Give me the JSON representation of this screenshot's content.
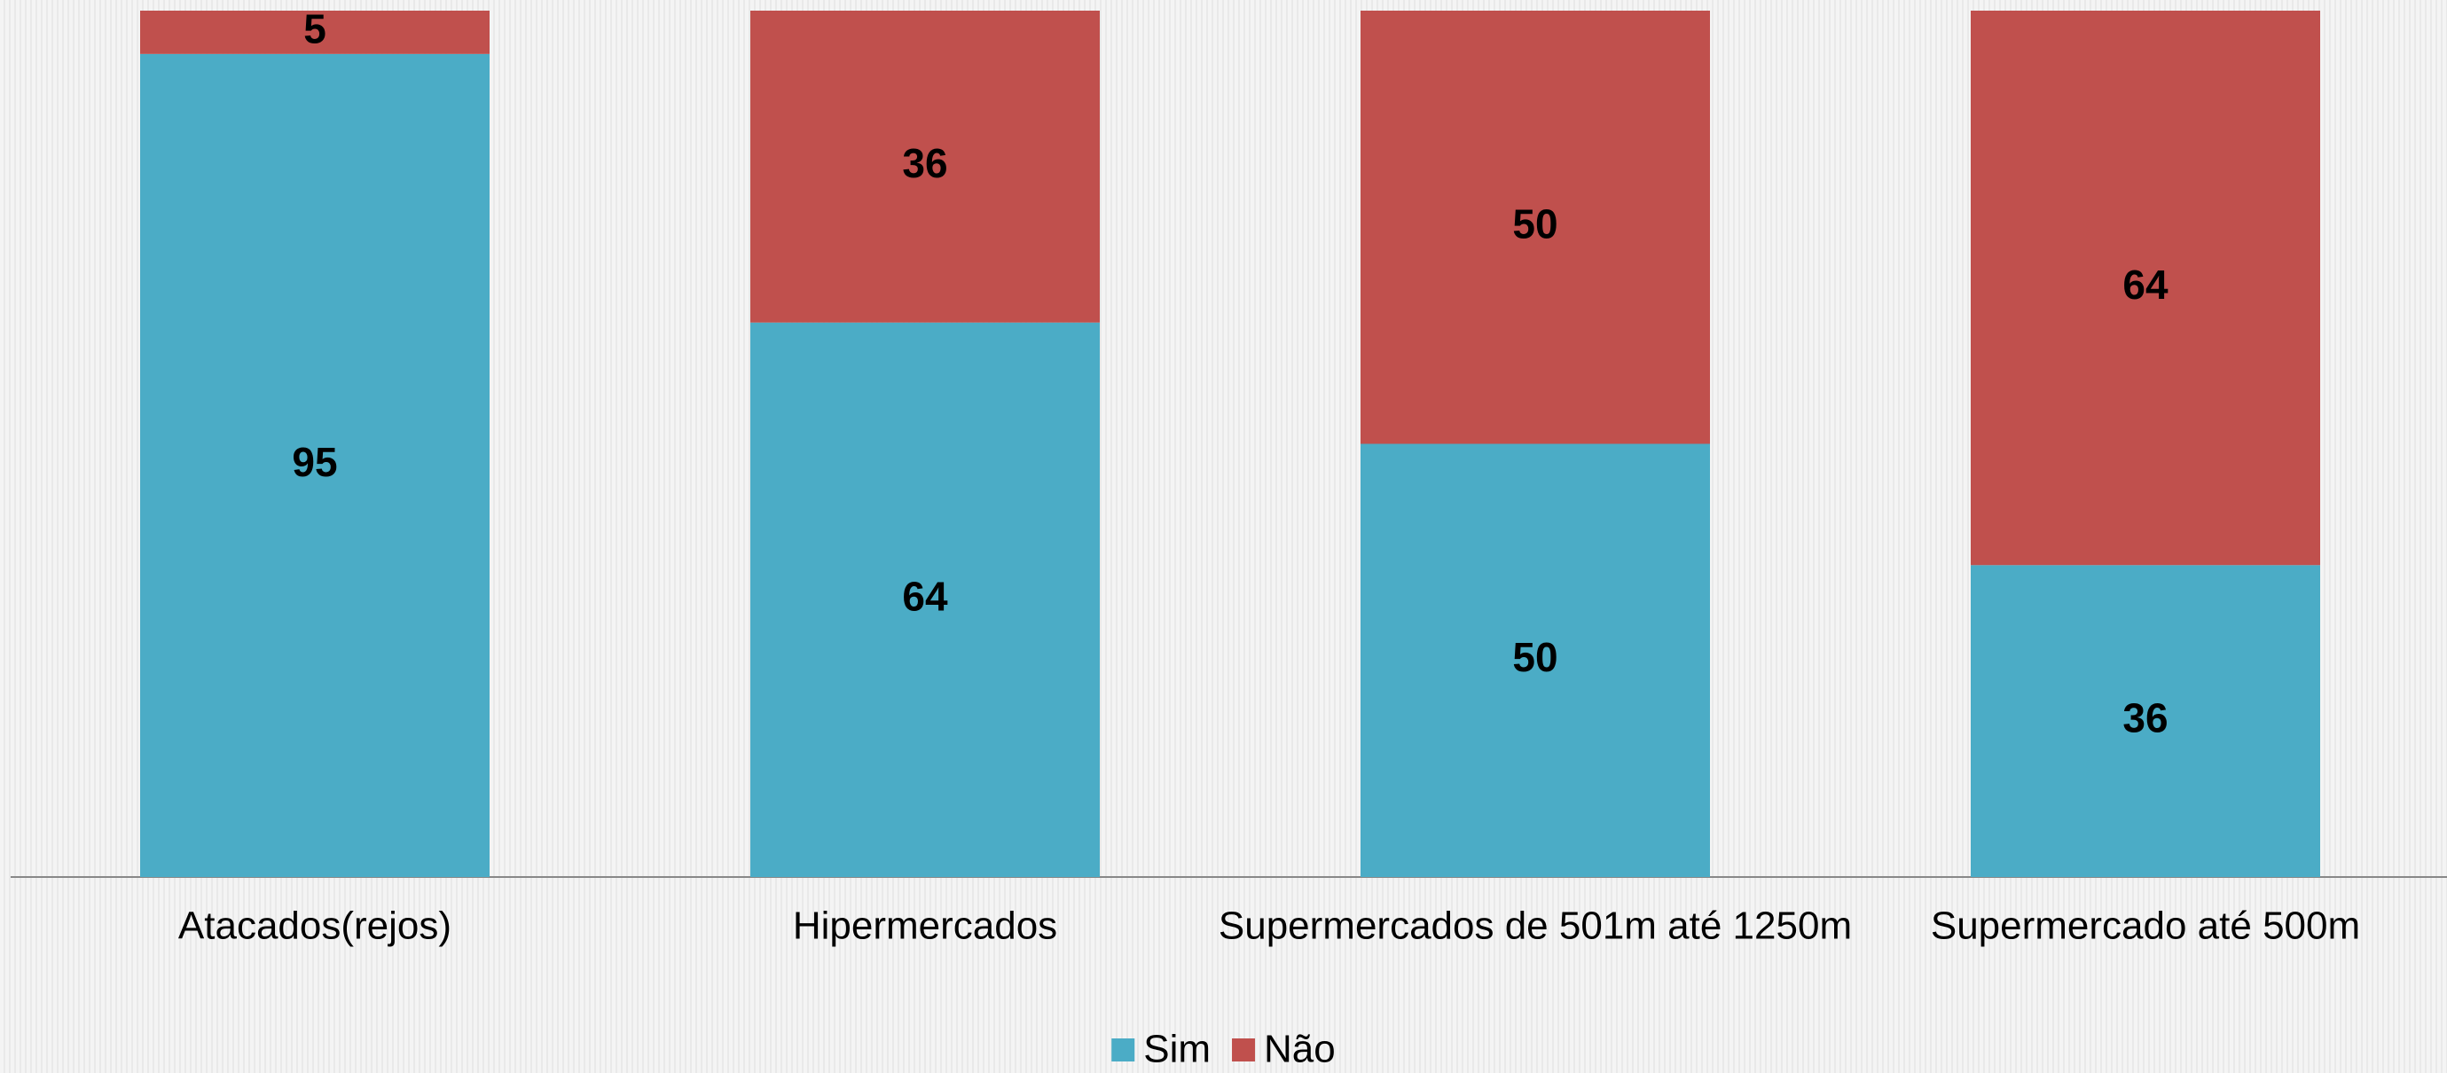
{
  "chart_data": {
    "type": "bar",
    "stacked": true,
    "categories": [
      "Atacados(rejos)",
      "Hipermercados",
      "Supermercados de 501m até 1250m",
      "Supermercado até 500m"
    ],
    "series": [
      {
        "name": "Sim",
        "color": "#4bacc6",
        "values": [
          95,
          64,
          50,
          36
        ]
      },
      {
        "name": "Não",
        "color": "#c0504d",
        "values": [
          5,
          36,
          50,
          64
        ]
      }
    ],
    "legend": "bottom"
  }
}
